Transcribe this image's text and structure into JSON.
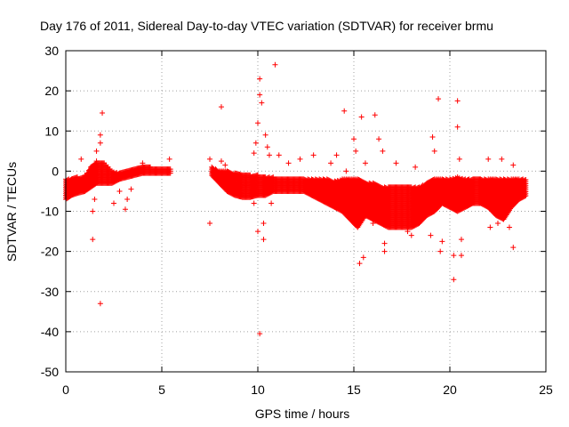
{
  "chart_data": {
    "type": "scatter",
    "title": "Day 176 of 2011, Sidereal Day-to-day VTEC variation (SDTVAR) for receiver brmu",
    "xlabel": "GPS time / hours",
    "ylabel": "SDTVAR / TECUs",
    "xlim": [
      0,
      25
    ],
    "ylim": [
      -50,
      30
    ],
    "xticks": [
      0,
      5,
      10,
      15,
      20,
      25
    ],
    "yticks": [
      -50,
      -40,
      -30,
      -20,
      -10,
      0,
      10,
      20,
      30
    ],
    "xtick_labels": [
      "0",
      "5",
      "10",
      "15",
      "20",
      "25"
    ],
    "ytick_labels": [
      "-50",
      "-40",
      "-30",
      "-20",
      "-10",
      "0",
      "10",
      "20",
      "30"
    ],
    "grid": true,
    "marker": "+",
    "color": "#ff0000",
    "series": [
      {
        "name": "SDTVAR",
        "band": [
          {
            "x": 0.0,
            "lo": -7,
            "hi": -2
          },
          {
            "x": 0.3,
            "lo": -6,
            "hi": -2
          },
          {
            "x": 0.6,
            "lo": -5.5,
            "hi": -1.5
          },
          {
            "x": 1.0,
            "lo": -5,
            "hi": -1.5
          },
          {
            "x": 1.3,
            "lo": -4,
            "hi": 1
          },
          {
            "x": 1.6,
            "lo": -3,
            "hi": 2.5
          },
          {
            "x": 2.0,
            "lo": -3,
            "hi": 2
          },
          {
            "x": 2.4,
            "lo": -3,
            "hi": 0
          },
          {
            "x": 2.8,
            "lo": -2,
            "hi": -0.5
          },
          {
            "x": 3.2,
            "lo": -1.5,
            "hi": 0
          },
          {
            "x": 3.6,
            "lo": -1,
            "hi": 0.5
          },
          {
            "x": 4.0,
            "lo": -0.5,
            "hi": 1
          },
          {
            "x": 4.4,
            "lo": -0.5,
            "hi": 1
          },
          {
            "x": 4.8,
            "lo": -0.5,
            "hi": 0.5
          },
          {
            "x": 5.2,
            "lo": -0.5,
            "hi": 0.5
          },
          {
            "x": 5.5,
            "lo": -0.5,
            "hi": 0.5
          },
          {
            "x": 7.6,
            "lo": -1,
            "hi": 1
          },
          {
            "x": 8.0,
            "lo": -3,
            "hi": 0
          },
          {
            "x": 8.4,
            "lo": -5,
            "hi": 0
          },
          {
            "x": 8.8,
            "lo": -6,
            "hi": -0.5
          },
          {
            "x": 9.2,
            "lo": -6.5,
            "hi": -1
          },
          {
            "x": 9.6,
            "lo": -6.5,
            "hi": -1
          },
          {
            "x": 10.0,
            "lo": -6,
            "hi": -1
          },
          {
            "x": 10.4,
            "lo": -6,
            "hi": -1.5
          },
          {
            "x": 10.8,
            "lo": -5,
            "hi": -1.5
          },
          {
            "x": 11.2,
            "lo": -5,
            "hi": -2
          },
          {
            "x": 11.6,
            "lo": -5,
            "hi": -2
          },
          {
            "x": 12.0,
            "lo": -5,
            "hi": -2
          },
          {
            "x": 12.4,
            "lo": -5,
            "hi": -2
          },
          {
            "x": 12.8,
            "lo": -6,
            "hi": -2
          },
          {
            "x": 13.2,
            "lo": -7,
            "hi": -2
          },
          {
            "x": 13.6,
            "lo": -8,
            "hi": -2
          },
          {
            "x": 14.0,
            "lo": -9,
            "hi": -2.5
          },
          {
            "x": 14.4,
            "lo": -10,
            "hi": -2
          },
          {
            "x": 14.8,
            "lo": -12,
            "hi": -2
          },
          {
            "x": 15.2,
            "lo": -14,
            "hi": -2
          },
          {
            "x": 15.6,
            "lo": -11,
            "hi": -3
          },
          {
            "x": 16.0,
            "lo": -12,
            "hi": -3
          },
          {
            "x": 16.4,
            "lo": -13,
            "hi": -4
          },
          {
            "x": 16.8,
            "lo": -14,
            "hi": -4
          },
          {
            "x": 17.2,
            "lo": -14,
            "hi": -4
          },
          {
            "x": 17.6,
            "lo": -14,
            "hi": -4
          },
          {
            "x": 18.0,
            "lo": -14,
            "hi": -4
          },
          {
            "x": 18.4,
            "lo": -13,
            "hi": -4
          },
          {
            "x": 18.8,
            "lo": -11,
            "hi": -3
          },
          {
            "x": 19.2,
            "lo": -10,
            "hi": -2
          },
          {
            "x": 19.6,
            "lo": -8,
            "hi": -2
          },
          {
            "x": 20.0,
            "lo": -9,
            "hi": -2
          },
          {
            "x": 20.4,
            "lo": -10,
            "hi": -1.5
          },
          {
            "x": 20.8,
            "lo": -9,
            "hi": -2
          },
          {
            "x": 21.2,
            "lo": -8,
            "hi": -2
          },
          {
            "x": 21.6,
            "lo": -8,
            "hi": -2
          },
          {
            "x": 22.0,
            "lo": -9,
            "hi": -2
          },
          {
            "x": 22.4,
            "lo": -11,
            "hi": -2
          },
          {
            "x": 22.8,
            "lo": -12,
            "hi": -2
          },
          {
            "x": 23.2,
            "lo": -9,
            "hi": -2
          },
          {
            "x": 23.6,
            "lo": -7,
            "hi": -2
          },
          {
            "x": 24.0,
            "lo": -6,
            "hi": -2
          }
        ],
        "outliers": [
          {
            "x": 0.8,
            "y": 3
          },
          {
            "x": 1.0,
            "y": -1
          },
          {
            "x": 1.4,
            "y": -10
          },
          {
            "x": 1.4,
            "y": -17
          },
          {
            "x": 1.5,
            "y": -7
          },
          {
            "x": 1.6,
            "y": 5
          },
          {
            "x": 1.8,
            "y": 9
          },
          {
            "x": 1.8,
            "y": 7
          },
          {
            "x": 1.9,
            "y": 14.5
          },
          {
            "x": 1.8,
            "y": -33
          },
          {
            "x": 2.5,
            "y": -8
          },
          {
            "x": 2.8,
            "y": -5
          },
          {
            "x": 3.1,
            "y": -9.5
          },
          {
            "x": 3.2,
            "y": -7
          },
          {
            "x": 3.4,
            "y": -4.5
          },
          {
            "x": 4.0,
            "y": 2
          },
          {
            "x": 5.4,
            "y": 3
          },
          {
            "x": 7.5,
            "y": 3
          },
          {
            "x": 7.5,
            "y": -13
          },
          {
            "x": 8.1,
            "y": 16
          },
          {
            "x": 8.1,
            "y": 2.5
          },
          {
            "x": 8.3,
            "y": 1.5
          },
          {
            "x": 9.8,
            "y": 4.5
          },
          {
            "x": 9.8,
            "y": -8
          },
          {
            "x": 9.9,
            "y": 7
          },
          {
            "x": 10.0,
            "y": 12
          },
          {
            "x": 10.1,
            "y": 23
          },
          {
            "x": 10.1,
            "y": 19
          },
          {
            "x": 10.2,
            "y": 17
          },
          {
            "x": 10.0,
            "y": -15
          },
          {
            "x": 10.1,
            "y": -40.5
          },
          {
            "x": 10.3,
            "y": -17
          },
          {
            "x": 10.3,
            "y": -13
          },
          {
            "x": 10.4,
            "y": 9
          },
          {
            "x": 10.5,
            "y": 6
          },
          {
            "x": 10.6,
            "y": 4
          },
          {
            "x": 10.7,
            "y": -8
          },
          {
            "x": 10.9,
            "y": 26.5
          },
          {
            "x": 11.1,
            "y": 4
          },
          {
            "x": 11.6,
            "y": 2
          },
          {
            "x": 12.2,
            "y": 3
          },
          {
            "x": 12.9,
            "y": 4
          },
          {
            "x": 13.8,
            "y": 2
          },
          {
            "x": 14.1,
            "y": 4
          },
          {
            "x": 14.5,
            "y": 15
          },
          {
            "x": 14.6,
            "y": 0
          },
          {
            "x": 15.0,
            "y": 8
          },
          {
            "x": 15.1,
            "y": 5
          },
          {
            "x": 15.3,
            "y": -23
          },
          {
            "x": 15.4,
            "y": 13.5
          },
          {
            "x": 15.5,
            "y": -21.5
          },
          {
            "x": 15.6,
            "y": 2
          },
          {
            "x": 16.0,
            "y": -13
          },
          {
            "x": 16.1,
            "y": 14
          },
          {
            "x": 16.3,
            "y": 8
          },
          {
            "x": 16.5,
            "y": 5
          },
          {
            "x": 16.6,
            "y": -18
          },
          {
            "x": 16.6,
            "y": -20
          },
          {
            "x": 17.2,
            "y": 2
          },
          {
            "x": 17.8,
            "y": -15
          },
          {
            "x": 18.0,
            "y": -16
          },
          {
            "x": 18.2,
            "y": 1
          },
          {
            "x": 19.0,
            "y": -16
          },
          {
            "x": 19.1,
            "y": 8.5
          },
          {
            "x": 19.2,
            "y": 5
          },
          {
            "x": 19.4,
            "y": 18
          },
          {
            "x": 19.5,
            "y": -20
          },
          {
            "x": 19.6,
            "y": -17.5
          },
          {
            "x": 20.2,
            "y": -21
          },
          {
            "x": 20.2,
            "y": -27
          },
          {
            "x": 20.4,
            "y": 17.5
          },
          {
            "x": 20.4,
            "y": 11
          },
          {
            "x": 20.5,
            "y": 3
          },
          {
            "x": 20.6,
            "y": -17
          },
          {
            "x": 20.6,
            "y": -21
          },
          {
            "x": 21.0,
            "y": -7
          },
          {
            "x": 22.0,
            "y": 3
          },
          {
            "x": 22.1,
            "y": -14
          },
          {
            "x": 22.5,
            "y": -13
          },
          {
            "x": 22.7,
            "y": 3
          },
          {
            "x": 23.1,
            "y": -14
          },
          {
            "x": 23.3,
            "y": 1.5
          },
          {
            "x": 23.3,
            "y": -19
          }
        ]
      }
    ]
  }
}
